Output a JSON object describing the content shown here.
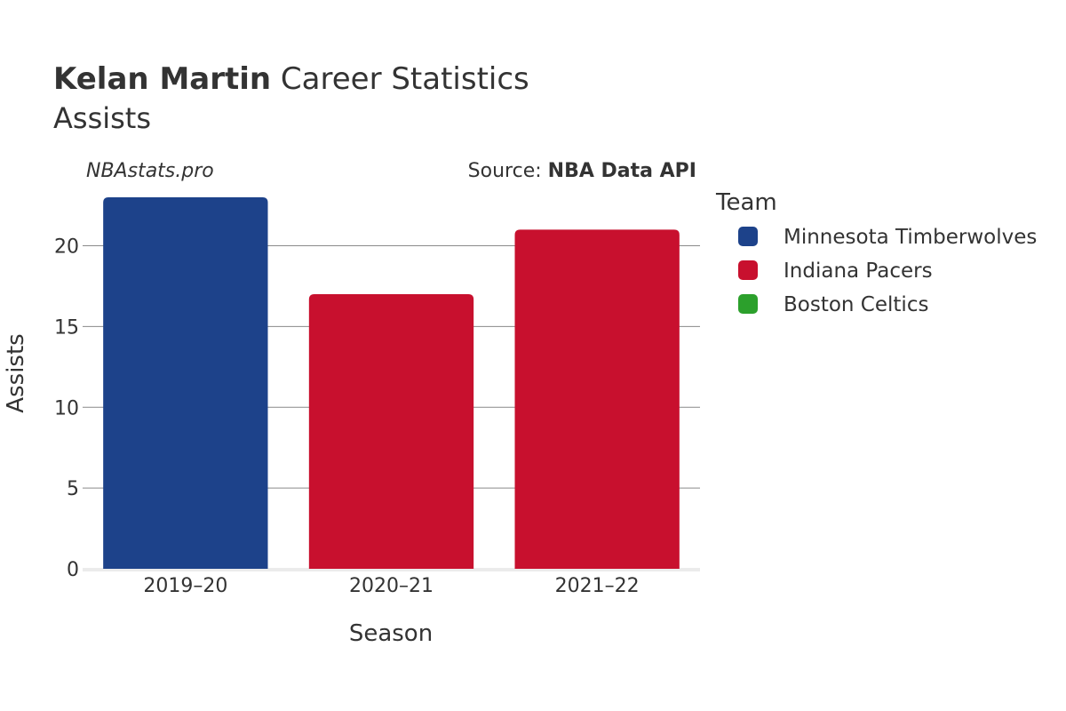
{
  "title": {
    "player": "Kelan Martin",
    "rest": "Career Statistics"
  },
  "subtitle": "Assists",
  "watermark": "NBAstats.pro",
  "source": {
    "prefix": "Source:",
    "name": "NBA Data API"
  },
  "chart_data": {
    "type": "bar",
    "categories": [
      "2019–20",
      "2020–21",
      "2021–22"
    ],
    "values": [
      23,
      17,
      21
    ],
    "bar_teams": [
      "Minnesota Timberwolves",
      "Indiana Pacers",
      "Indiana Pacers"
    ],
    "xlabel": "Season",
    "ylabel": "Assists",
    "ylim": [
      0,
      23
    ],
    "yticks": [
      0,
      5,
      10,
      15,
      20
    ],
    "grid": true,
    "legend_title": "Team",
    "legend_placement": "right",
    "legend": [
      {
        "name": "Minnesota Timberwolves",
        "color": "#1d428a"
      },
      {
        "name": "Indiana Pacers",
        "color": "#c8102e"
      },
      {
        "name": "Boston Celtics",
        "color": "#2ca02c"
      }
    ]
  }
}
